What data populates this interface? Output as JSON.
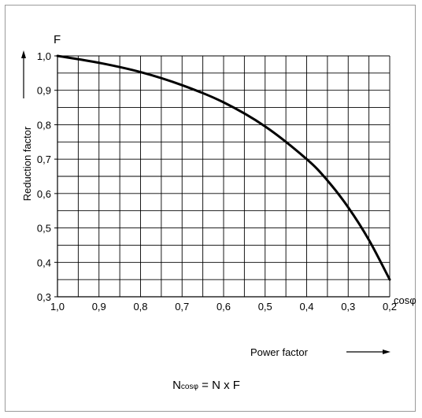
{
  "chart_data": {
    "type": "line",
    "title": "",
    "xlabel": "Power factor",
    "ylabel": "Reduction factor",
    "y_symbol": "F",
    "x_symbol": "cosφ",
    "x_reversed": true,
    "xlim": [
      1.0,
      0.2
    ],
    "ylim": [
      0.3,
      1.0
    ],
    "x_ticks": [
      "1,0",
      "0,9",
      "0,8",
      "0,7",
      "0,6",
      "0,5",
      "0,4",
      "0,3",
      "0,2"
    ],
    "y_ticks": [
      "0,3",
      "0,4",
      "0,5",
      "0,6",
      "0,7",
      "0,8",
      "0,9",
      "1,0"
    ],
    "x_tick_values": [
      1.0,
      0.9,
      0.8,
      0.7,
      0.6,
      0.5,
      0.4,
      0.3,
      0.2
    ],
    "y_tick_values": [
      0.3,
      0.4,
      0.5,
      0.6,
      0.7,
      0.8,
      0.9,
      1.0
    ],
    "grid": true,
    "minor_divisions": 2,
    "series": [
      {
        "color": "#000000",
        "x": [
          1.0,
          0.9,
          0.8,
          0.7,
          0.6,
          0.5,
          0.4,
          0.35,
          0.3,
          0.25,
          0.2
        ],
        "y": [
          1.0,
          0.98,
          0.953,
          0.915,
          0.865,
          0.795,
          0.7,
          0.638,
          0.56,
          0.465,
          0.35
        ]
      }
    ]
  },
  "formula": {
    "lhs_main": "N",
    "lhs_sub": "cosφ",
    "rhs": " = N x F"
  }
}
